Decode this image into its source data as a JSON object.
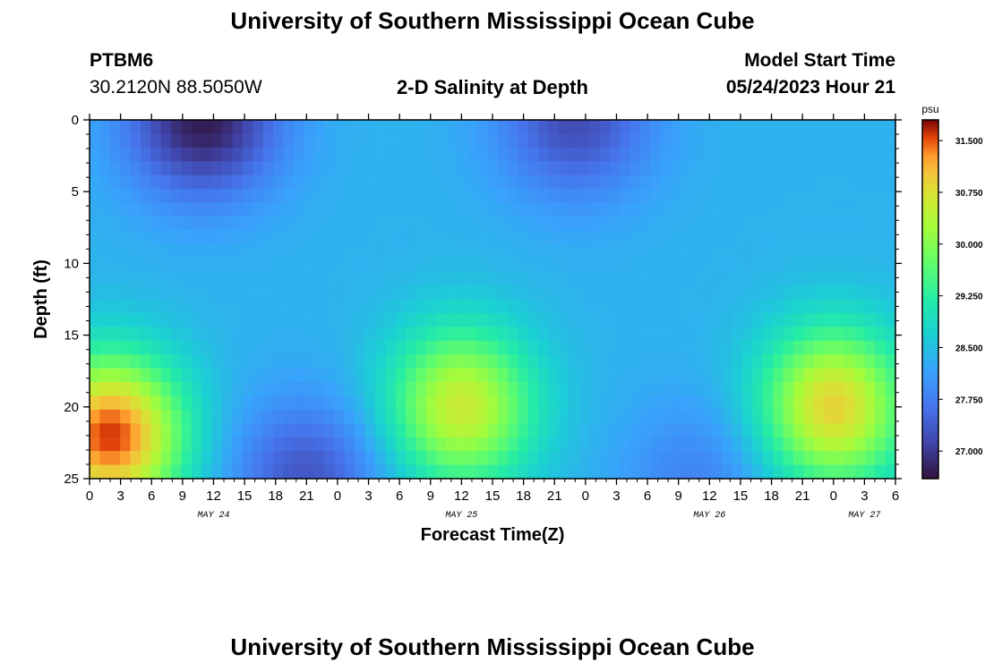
{
  "header": {
    "title": "University of Southern Mississippi Ocean Cube",
    "station": "PTBM6",
    "coordinates": "30.2120N  88.5050W",
    "subtitle": "2-D Salinity at Depth",
    "model_start_label": "Model Start Time",
    "model_start_value": "05/24/2023 Hour 21"
  },
  "footer": {
    "title": "University of Southern Mississippi Ocean Cube"
  },
  "chart_data": {
    "type": "heatmap",
    "xlabel": "Forecast Time(Z)",
    "ylabel": "Depth (ft)",
    "x_tick_labels": [
      "0",
      "3",
      "6",
      "9",
      "12",
      "15",
      "18",
      "21",
      "0",
      "3",
      "6",
      "9",
      "12",
      "15",
      "18",
      "21",
      "0",
      "3",
      "6",
      "9",
      "12",
      "15",
      "18",
      "21",
      "0",
      "3",
      "6"
    ],
    "x_range_hours": [
      0,
      78
    ],
    "date_labels": [
      {
        "text": "MAY 24",
        "hour": 12
      },
      {
        "text": "MAY 25",
        "hour": 36
      },
      {
        "text": "MAY 26",
        "hour": 60
      },
      {
        "text": "MAY 27",
        "hour": 75
      }
    ],
    "y_ticks": [
      0,
      5,
      10,
      15,
      20,
      25
    ],
    "y_range_ft": [
      0,
      25
    ],
    "colorbar": {
      "unit": "psu",
      "labels": [
        "31.500",
        "30.750",
        "30.000",
        "29.250",
        "28.500",
        "27.750",
        "27.000"
      ],
      "range": [
        26.6,
        31.8
      ]
    },
    "features": [
      {
        "kind": "low",
        "hour": 11,
        "depth": 0,
        "value": 26.7
      },
      {
        "kind": "high",
        "hour": 2,
        "depth": 22,
        "value": 31.6
      },
      {
        "kind": "low",
        "hour": 21,
        "depth": 25,
        "value": 27.3
      },
      {
        "kind": "high",
        "hour": 36,
        "depth": 20,
        "value": 30.6
      },
      {
        "kind": "low",
        "hour": 47,
        "depth": 0,
        "value": 27.2
      },
      {
        "kind": "low",
        "hour": 59,
        "depth": 25,
        "value": 27.8
      },
      {
        "kind": "high",
        "hour": 72,
        "depth": 20,
        "value": 30.9
      }
    ]
  }
}
